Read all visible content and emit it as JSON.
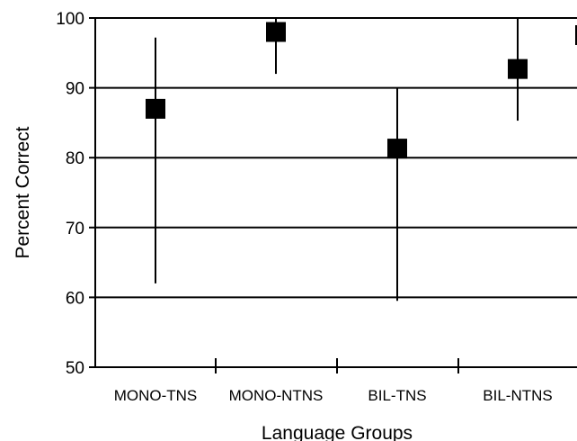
{
  "chart_data": {
    "type": "scatter",
    "title": "",
    "xlabel": "Language Groups",
    "ylabel": "Percent  Correct",
    "ylim": [
      50,
      100
    ],
    "yticks": [
      50,
      60,
      70,
      80,
      90,
      100
    ],
    "grid": true,
    "categories": [
      "MONO-TNS",
      "MONO-NTNS",
      "BIL-TNS",
      "BIL-NTNS"
    ],
    "values": [
      87,
      98,
      81.3,
      92.7
    ],
    "error_low": [
      62,
      92,
      59.5,
      85.3
    ],
    "error_high": [
      97.2,
      100,
      90,
      100
    ],
    "marker": "square",
    "colors": {
      "axis": "#000000",
      "marker": "#000000",
      "background": "#ffffff"
    }
  }
}
